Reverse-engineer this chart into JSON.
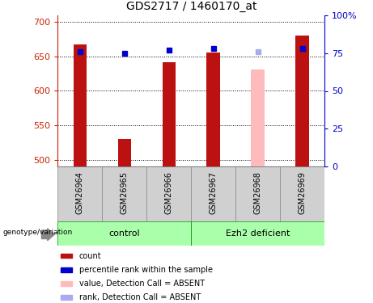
{
  "title": "GDS2717 / 1460170_at",
  "samples": [
    "GSM26964",
    "GSM26965",
    "GSM26966",
    "GSM26967",
    "GSM26968",
    "GSM26969"
  ],
  "bar_values": [
    667,
    530,
    642,
    656,
    null,
    680
  ],
  "bar_absent_value": 631,
  "bar_absent_idx": 4,
  "bar_colors": [
    "#bb1111",
    "#bb1111",
    "#bb1111",
    "#bb1111",
    "#ffbbbb",
    "#bb1111"
  ],
  "percentile_values": [
    76,
    75,
    77,
    78,
    null,
    78
  ],
  "percentile_absent_idx": 4,
  "percentile_absent_value": 76,
  "ylim_left": [
    490,
    710
  ],
  "ylim_right": [
    0,
    100
  ],
  "yticks_left": [
    500,
    550,
    600,
    650,
    700
  ],
  "yticks_right": [
    0,
    25,
    50,
    75,
    100
  ],
  "ytick_labels_right": [
    "0",
    "25",
    "50",
    "75",
    "100%"
  ],
  "bar_width": 0.3,
  "bar_color_dark_red": "#bb1111",
  "bar_color_absent": "#ffbbbb",
  "dot_color_blue": "#0000cc",
  "dot_color_absent": "#aaaaee",
  "legend_items": [
    {
      "label": "count",
      "color": "#bb1111"
    },
    {
      "label": "percentile rank within the sample",
      "color": "#0000cc"
    },
    {
      "label": "value, Detection Call = ABSENT",
      "color": "#ffbbbb"
    },
    {
      "label": "rank, Detection Call = ABSENT",
      "color": "#aaaaee"
    }
  ],
  "xlabel_area_color": "#cccccc",
  "group_area_color": "#88ee88",
  "ctrl_label": "control",
  "ezh_label": "Ezh2 deficient",
  "gv_label": "genotype/variation"
}
